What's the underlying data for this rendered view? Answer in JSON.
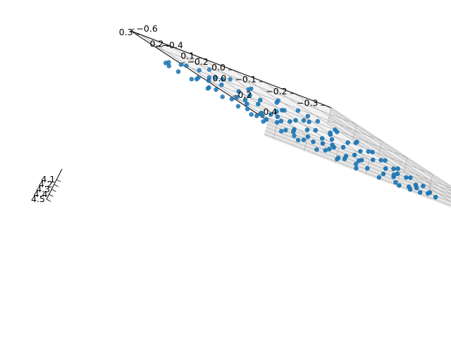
{
  "chart_data": {
    "type": "scatter",
    "projection": "3d",
    "title": "",
    "xlabel": "",
    "ylabel": "",
    "zlabel": "",
    "x_ticks": [
      "−0.6",
      "−0.4",
      "−0.2",
      "0.0",
      "0.2",
      "0.4"
    ],
    "y_ticks": [
      "−0.3",
      "−0.2",
      "−0.1",
      "0.0",
      "0.1",
      "0.2",
      "0.3"
    ],
    "z_ticks": [
      "4.1",
      "4.2",
      "4.3",
      "4.4",
      "4.5"
    ],
    "x_range": [
      -0.6,
      0.48
    ],
    "y_range": [
      -0.32,
      0.33
    ],
    "z_range": [
      4.1,
      4.55
    ],
    "grid": true,
    "marker_color": "#1f77b4",
    "pane_color": "#f2f2f2",
    "grid_color": "#b0b0b0",
    "points": [
      [
        -0.5,
        0.2,
        4.4
      ],
      [
        -0.45,
        0.26,
        4.42
      ],
      [
        -0.4,
        0.29,
        4.42
      ],
      [
        -0.35,
        0.3,
        4.42
      ],
      [
        -0.3,
        0.29,
        4.43
      ],
      [
        -0.22,
        0.28,
        4.42
      ],
      [
        -0.14,
        0.26,
        4.43
      ],
      [
        -0.05,
        0.25,
        4.42
      ],
      [
        0.05,
        0.24,
        4.42
      ],
      [
        0.13,
        0.23,
        4.43
      ],
      [
        0.2,
        0.22,
        4.43
      ],
      [
        0.27,
        0.19,
        4.44
      ],
      [
        0.33,
        0.16,
        4.45
      ],
      [
        0.38,
        0.12,
        4.47
      ],
      [
        0.42,
        0.07,
        4.48
      ],
      [
        0.45,
        0.02,
        4.5
      ],
      [
        0.46,
        -0.05,
        4.5
      ],
      [
        0.45,
        -0.12,
        4.52
      ],
      [
        0.42,
        -0.2,
        4.52
      ],
      [
        0.36,
        -0.25,
        4.52
      ],
      [
        0.28,
        -0.29,
        4.55
      ],
      [
        0.2,
        -0.3,
        4.52
      ],
      [
        0.1,
        -0.3,
        4.52
      ],
      [
        0.0,
        -0.3,
        4.5
      ],
      [
        -0.1,
        -0.3,
        4.5
      ],
      [
        -0.2,
        -0.3,
        4.5
      ],
      [
        -0.3,
        -0.29,
        4.48
      ],
      [
        -0.4,
        -0.26,
        4.47
      ],
      [
        -0.47,
        -0.2,
        4.45
      ],
      [
        -0.52,
        -0.12,
        4.45
      ],
      [
        -0.55,
        -0.04,
        4.42
      ],
      [
        -0.56,
        0.04,
        4.42
      ],
      [
        -0.55,
        0.12,
        4.41
      ],
      [
        -0.53,
        0.17,
        4.4
      ],
      [
        -0.36,
        0.2,
        4.44
      ],
      [
        -0.3,
        0.23,
        4.44
      ],
      [
        -0.22,
        0.2,
        4.45
      ],
      [
        -0.12,
        0.19,
        4.45
      ],
      [
        -0.02,
        0.18,
        4.46
      ],
      [
        0.08,
        0.16,
        4.46
      ],
      [
        0.16,
        0.13,
        4.47
      ],
      [
        0.23,
        0.1,
        4.48
      ],
      [
        0.28,
        0.05,
        4.49
      ],
      [
        0.31,
        0.0,
        4.5
      ],
      [
        0.32,
        -0.07,
        4.51
      ],
      [
        0.3,
        -0.13,
        4.51
      ],
      [
        0.26,
        -0.18,
        4.52
      ],
      [
        0.19,
        -0.21,
        4.53
      ],
      [
        0.1,
        -0.22,
        4.53
      ],
      [
        0.0,
        -0.22,
        4.52
      ],
      [
        -0.1,
        -0.22,
        4.51
      ],
      [
        -0.2,
        -0.22,
        4.5
      ],
      [
        -0.29,
        -0.2,
        4.5
      ],
      [
        -0.36,
        -0.16,
        4.49
      ],
      [
        -0.41,
        -0.1,
        4.48
      ],
      [
        -0.43,
        -0.03,
        4.47
      ],
      [
        -0.43,
        0.04,
        4.46
      ],
      [
        -0.42,
        0.1,
        4.45
      ],
      [
        -0.4,
        0.15,
        4.45
      ],
      [
        -0.25,
        0.12,
        4.47
      ],
      [
        -0.17,
        0.12,
        4.47
      ],
      [
        -0.08,
        0.11,
        4.48
      ],
      [
        0.02,
        0.1,
        4.48
      ],
      [
        0.1,
        0.08,
        4.49
      ],
      [
        0.16,
        0.04,
        4.5
      ],
      [
        0.19,
        0.0,
        4.5
      ],
      [
        0.2,
        -0.05,
        4.51
      ],
      [
        0.18,
        -0.1,
        4.52
      ],
      [
        0.13,
        -0.13,
        4.52
      ],
      [
        0.05,
        -0.14,
        4.53
      ],
      [
        -0.04,
        -0.14,
        4.52
      ],
      [
        -0.13,
        -0.14,
        4.51
      ],
      [
        -0.21,
        -0.12,
        4.51
      ],
      [
        -0.27,
        -0.08,
        4.5
      ],
      [
        -0.3,
        -0.03,
        4.49
      ],
      [
        -0.3,
        0.03,
        4.48
      ],
      [
        -0.28,
        0.08,
        4.48
      ],
      [
        -0.15,
        0.05,
        4.49
      ],
      [
        -0.07,
        0.05,
        4.49
      ],
      [
        0.01,
        0.04,
        4.5
      ],
      [
        0.07,
        0.02,
        4.5
      ],
      [
        0.09,
        -0.02,
        4.51
      ],
      [
        0.08,
        -0.06,
        4.51
      ],
      [
        0.02,
        -0.08,
        4.52
      ],
      [
        -0.06,
        -0.08,
        4.52
      ],
      [
        -0.13,
        -0.06,
        4.51
      ],
      [
        -0.17,
        -0.02,
        4.5
      ],
      [
        -0.17,
        0.02,
        4.5
      ],
      [
        -0.62,
        0.06,
        4.35
      ],
      [
        -0.6,
        0.0,
        4.38
      ],
      [
        -0.58,
        -0.06,
        4.4
      ],
      [
        -0.56,
        -0.14,
        4.42
      ],
      [
        -0.5,
        -0.18,
        4.43
      ],
      [
        -0.44,
        -0.22,
        4.46
      ],
      [
        -0.36,
        -0.25,
        4.47
      ],
      [
        -0.26,
        -0.27,
        4.48
      ],
      [
        -0.16,
        -0.27,
        4.49
      ],
      [
        -0.06,
        -0.27,
        4.5
      ],
      [
        0.04,
        -0.27,
        4.51
      ],
      [
        0.14,
        -0.27,
        4.52
      ],
      [
        0.24,
        -0.26,
        4.53
      ],
      [
        0.32,
        -0.23,
        4.53
      ],
      [
        0.38,
        -0.18,
        4.52
      ],
      [
        0.42,
        -0.12,
        4.5
      ],
      [
        -0.44,
        0.0,
        4.46
      ],
      [
        -0.38,
        -0.08,
        4.47
      ],
      [
        -0.33,
        -0.13,
        4.48
      ],
      [
        0.38,
        0.05,
        4.47
      ],
      [
        0.35,
        -0.02,
        4.48
      ],
      [
        0.25,
        0.14,
        4.45
      ],
      [
        -0.18,
        0.24,
        4.43
      ],
      [
        0.1,
        0.2,
        4.44
      ],
      [
        -0.47,
        0.12,
        4.43
      ],
      [
        -0.52,
        0.08,
        4.42
      ],
      [
        0.44,
        -0.16,
        4.52
      ],
      [
        0.35,
        -0.28,
        4.55
      ],
      [
        0.12,
        -0.25,
        4.53
      ],
      [
        -0.24,
        -0.18,
        4.5
      ],
      [
        0.0,
        0.14,
        4.47
      ]
    ]
  }
}
